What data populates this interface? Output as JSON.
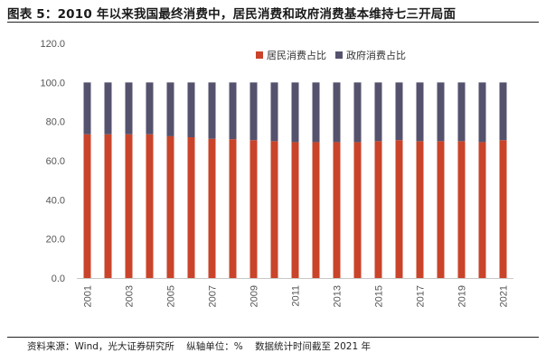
{
  "title": "图表 5：2010 年以来我国最终消费中，居民消费和政府消费基本维持七三开局面",
  "footer": {
    "source": "资料来源：Wind，光大证券研究所",
    "unit": "纵轴单位：%",
    "period": "数据统计时间截至 2021 年"
  },
  "colors": {
    "resident": "#c9442a",
    "government": "#55526e",
    "axis": "#c8c8c8"
  },
  "chart_data": {
    "type": "bar",
    "stacked": true,
    "x": [
      "2001",
      "2002",
      "2003",
      "2004",
      "2005",
      "2006",
      "2007",
      "2008",
      "2009",
      "2010",
      "2011",
      "2012",
      "2013",
      "2014",
      "2015",
      "2016",
      "2017",
      "2018",
      "2019",
      "2020",
      "2021"
    ],
    "x_tick_labels": [
      "2001",
      "",
      "2003",
      "",
      "2005",
      "",
      "2007",
      "",
      "2009",
      "",
      "2011",
      "",
      "2013",
      "",
      "2015",
      "",
      "2017",
      "",
      "2019",
      "",
      "2021"
    ],
    "series": [
      {
        "name": "居民消费占比",
        "values": [
          73.5,
          73.5,
          73.5,
          73.5,
          72.5,
          72.0,
          71.2,
          71.0,
          70.5,
          70.0,
          69.5,
          69.5,
          69.5,
          69.5,
          70.0,
          70.5,
          70.0,
          70.0,
          70.0,
          69.5,
          70.5
        ]
      },
      {
        "name": "政府消费占比",
        "values": [
          26.5,
          26.5,
          26.5,
          26.5,
          27.5,
          28.0,
          28.8,
          29.0,
          29.5,
          30.0,
          30.5,
          30.5,
          30.5,
          30.5,
          30.0,
          29.5,
          30.0,
          30.0,
          30.0,
          30.5,
          29.5
        ]
      }
    ],
    "y_ticks": [
      "0.0",
      "20.0",
      "40.0",
      "60.0",
      "80.0",
      "100.0",
      "120.0"
    ],
    "ylim": [
      0,
      120
    ],
    "legend_position": "top-right"
  }
}
